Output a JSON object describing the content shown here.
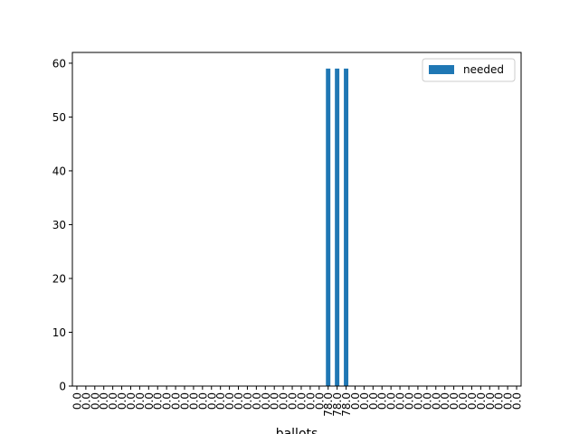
{
  "chart_data": {
    "type": "bar",
    "xlabel": "ballots",
    "ylabel": "",
    "ylim": [
      0,
      62
    ],
    "yticks": [
      0,
      10,
      20,
      30,
      40,
      50,
      60
    ],
    "legend": {
      "placement": "top-right",
      "entries": [
        "needed"
      ]
    },
    "grid": false,
    "categories": [
      "0.0",
      "0.0",
      "0.0",
      "0.0",
      "0.0",
      "0.0",
      "0.0",
      "0.0",
      "0.0",
      "0.0",
      "0.0",
      "0.0",
      "0.0",
      "0.0",
      "0.0",
      "0.0",
      "0.0",
      "0.0",
      "0.0",
      "0.0",
      "0.0",
      "0.0",
      "0.0",
      "0.0",
      "0.0",
      "0.0",
      "0.0",
      "0.0",
      "78.0",
      "78.0",
      "78.0",
      "0.0",
      "0.0",
      "0.0",
      "0.0",
      "0.0",
      "0.0",
      "0.0",
      "0.0",
      "0.0",
      "0.0",
      "0.0",
      "0.0",
      "0.0",
      "0.0",
      "0.0",
      "0.0",
      "0.0",
      "0.0",
      "0.0"
    ],
    "series": [
      {
        "name": "needed",
        "color": "#1f77b4",
        "values": [
          0,
          0,
          0,
          0,
          0,
          0,
          0,
          0,
          0,
          0,
          0,
          0,
          0,
          0,
          0,
          0,
          0,
          0,
          0,
          0,
          0,
          0,
          0,
          0,
          0,
          0,
          0,
          0,
          59,
          59,
          59,
          0,
          0,
          0,
          0,
          0,
          0,
          0,
          0,
          0,
          0,
          0,
          0,
          0,
          0,
          0,
          0,
          0,
          0,
          0
        ]
      }
    ]
  }
}
